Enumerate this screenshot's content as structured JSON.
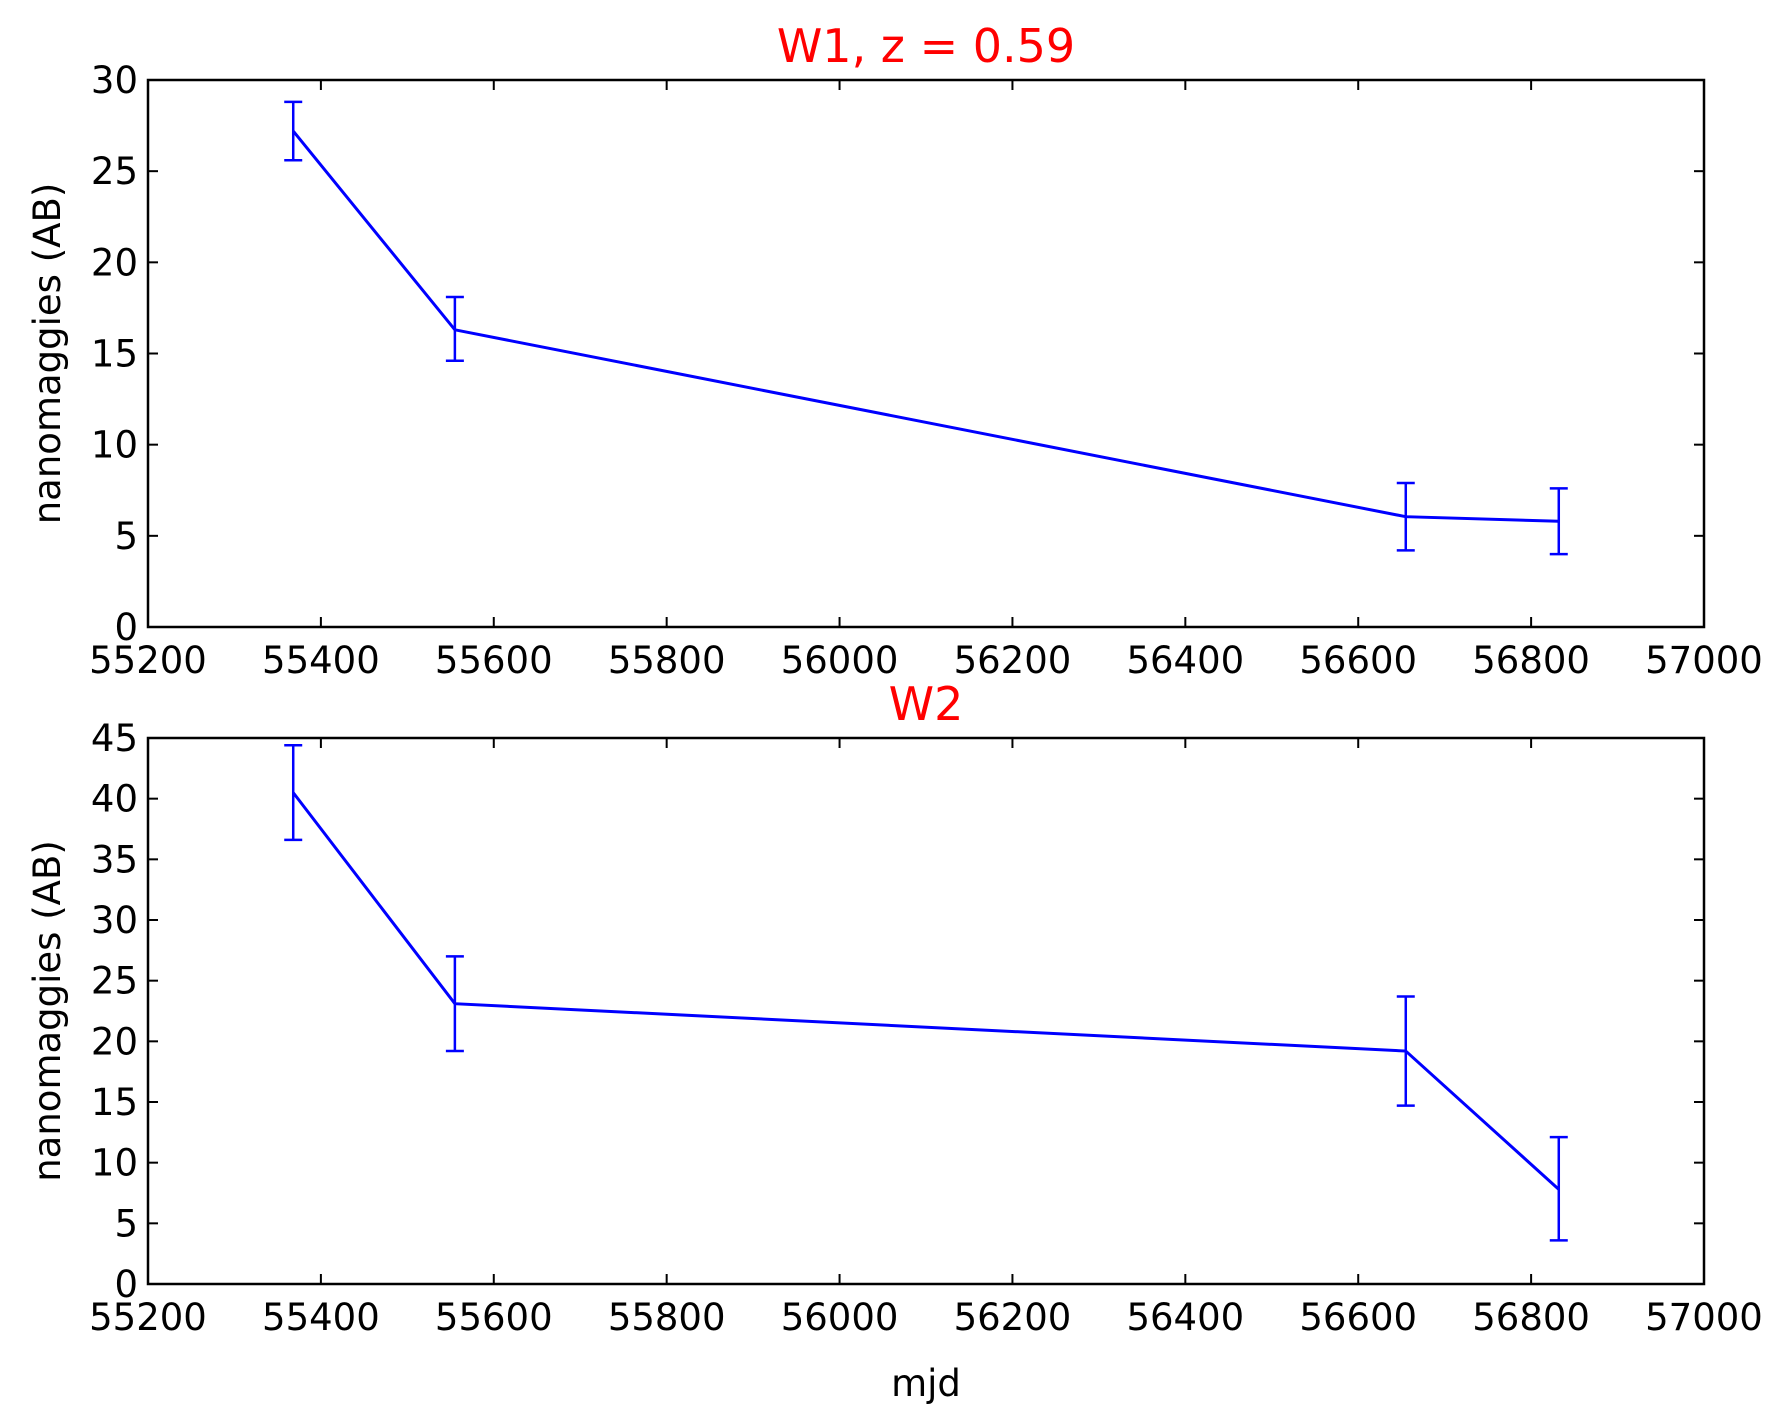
{
  "chart_data": [
    {
      "type": "line",
      "title": "W1, z = 0.59",
      "title_color": "#ff0000",
      "xlabel": "",
      "ylabel": "nanomaggies (AB)",
      "xlim": [
        55200,
        57000
      ],
      "ylim": [
        0,
        30
      ],
      "xticks": [
        "55200",
        "55400",
        "55600",
        "55800",
        "56000",
        "56200",
        "56400",
        "56600",
        "56800",
        "57000"
      ],
      "yticks": [
        "0",
        "5",
        "10",
        "15",
        "20",
        "25",
        "30"
      ],
      "grid": false,
      "series": [
        {
          "color": "#0000ff",
          "x": [
            55368,
            55555,
            56655,
            56832
          ],
          "y": [
            27.2,
            16.3,
            6.05,
            5.8
          ],
          "yerr_low": [
            25.6,
            14.6,
            4.2,
            4.0
          ],
          "yerr_high": [
            28.8,
            18.1,
            7.9,
            7.6
          ]
        }
      ]
    },
    {
      "type": "line",
      "title": "W2",
      "title_color": "#ff0000",
      "xlabel": "mjd",
      "ylabel": "nanomaggies (AB)",
      "xlim": [
        55200,
        57000
      ],
      "ylim": [
        0,
        45
      ],
      "xticks": [
        "55200",
        "55400",
        "55600",
        "55800",
        "56000",
        "56200",
        "56400",
        "56600",
        "56800",
        "57000"
      ],
      "yticks": [
        "0",
        "5",
        "10",
        "15",
        "20",
        "25",
        "30",
        "35",
        "40",
        "45"
      ],
      "grid": false,
      "series": [
        {
          "color": "#0000ff",
          "x": [
            55368,
            55555,
            56655,
            56832
          ],
          "y": [
            40.5,
            23.1,
            19.2,
            7.8
          ],
          "yerr_low": [
            36.6,
            19.2,
            14.7,
            3.6
          ],
          "yerr_high": [
            44.4,
            27.0,
            23.7,
            12.1
          ]
        }
      ]
    }
  ]
}
